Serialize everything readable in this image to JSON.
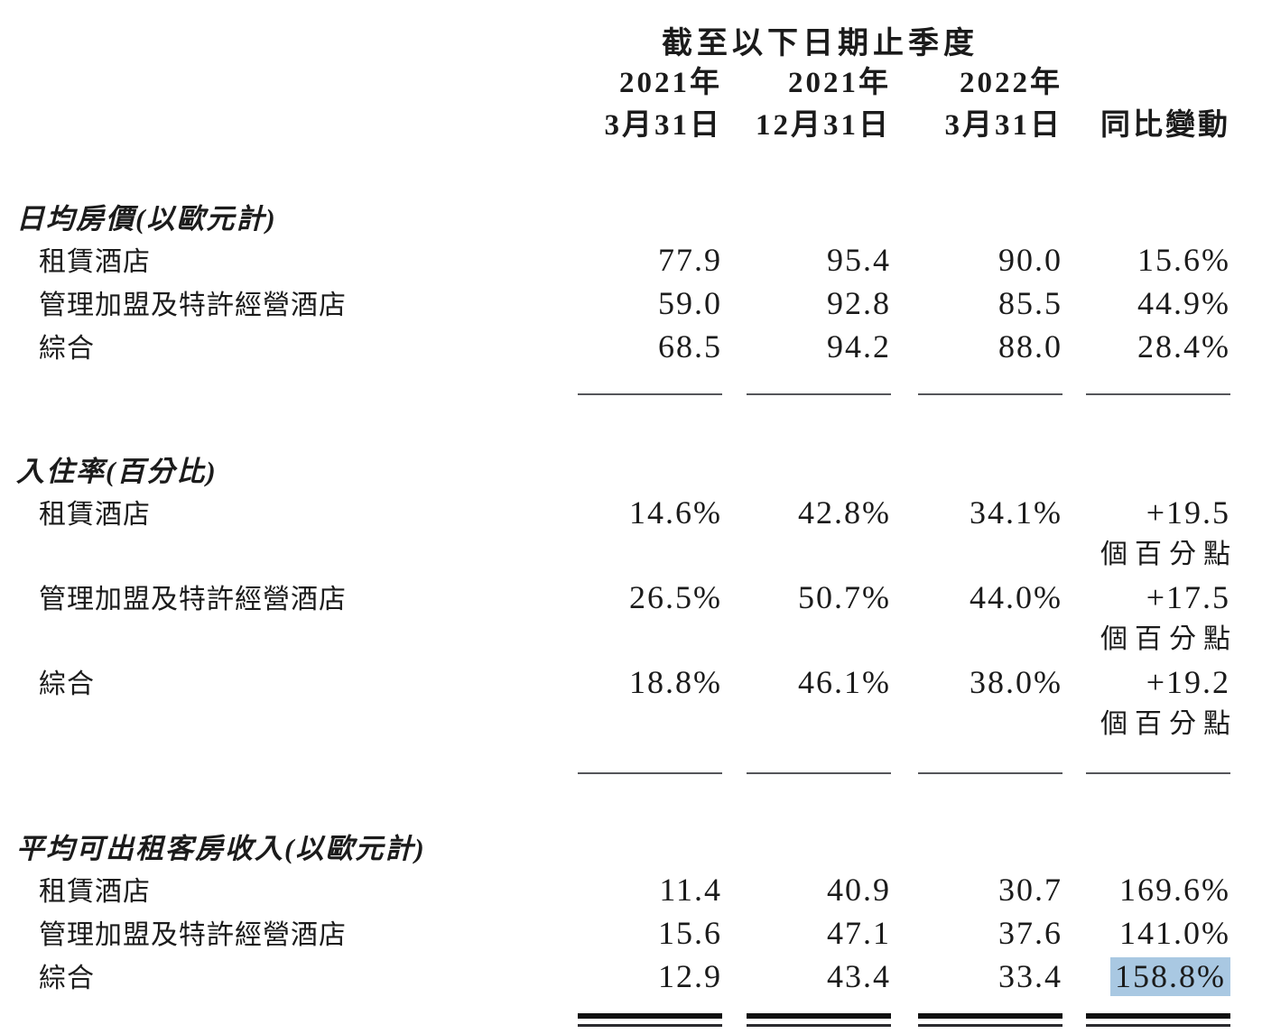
{
  "meta": {
    "highlight_color": "#a9c8e2"
  },
  "table": {
    "period_header": "截至以下日期止季度",
    "columns": {
      "years": [
        "2021年",
        "2021年",
        "2022年"
      ],
      "dates": [
        "3月31日",
        "12月31日",
        "3月31日"
      ],
      "yoy": "同比變動"
    },
    "sections": [
      {
        "title": "日均房價(以歐元計)",
        "rule": "single",
        "rows": [
          {
            "label": "租賃酒店",
            "values": [
              "77.9",
              "95.4",
              "90.0",
              "15.6%"
            ]
          },
          {
            "label": "管理加盟及特許經營酒店",
            "values": [
              "59.0",
              "92.8",
              "85.5",
              "44.9%"
            ]
          },
          {
            "label": "綜合",
            "values": [
              "68.5",
              "94.2",
              "88.0",
              "28.4%"
            ]
          }
        ]
      },
      {
        "title": "入住率(百分比)",
        "rule": "single",
        "yoy_unit": "個百分點",
        "rows": [
          {
            "label": "租賃酒店",
            "values": [
              "14.6%",
              "42.8%",
              "34.1%",
              "+19.5"
            ],
            "yoy_unit": "個百分點"
          },
          {
            "label": "管理加盟及特許經營酒店",
            "values": [
              "26.5%",
              "50.7%",
              "44.0%",
              "+17.5"
            ],
            "yoy_unit": "個百分點"
          },
          {
            "label": "綜合",
            "values": [
              "18.8%",
              "46.1%",
              "38.0%",
              "+19.2"
            ],
            "yoy_unit": "個百分點"
          }
        ]
      },
      {
        "title": "平均可出租客房收入(以歐元計)",
        "rule": "double",
        "rows": [
          {
            "label": "租賃酒店",
            "values": [
              "11.4",
              "40.9",
              "30.7",
              "169.6%"
            ]
          },
          {
            "label": "管理加盟及特許經營酒店",
            "values": [
              "15.6",
              "47.1",
              "37.6",
              "141.0%"
            ]
          },
          {
            "label": "綜合",
            "values": [
              "12.9",
              "43.4",
              "33.4",
              "158.8%"
            ],
            "highlight_last": true
          }
        ]
      }
    ]
  }
}
